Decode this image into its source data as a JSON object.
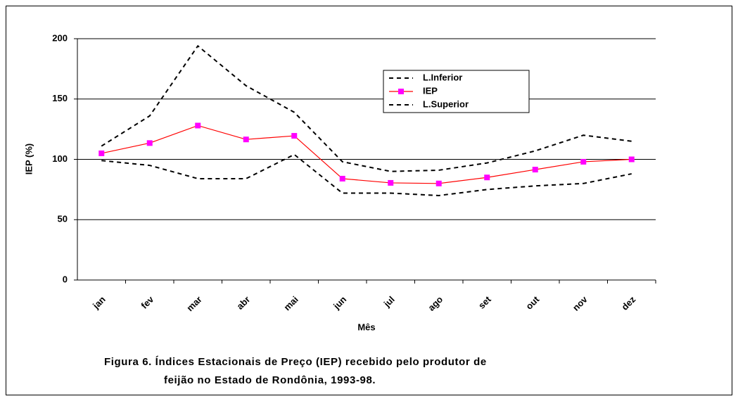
{
  "chart_data": {
    "type": "line",
    "title": [
      "Figura 6. Índices Estacionais de Preço (IEP) recebido pelo produtor de",
      "feijão no Estado de Rondônia, 1993-98."
    ],
    "x_label": "Mês",
    "y_label": "IEP (%)",
    "categories": [
      "jan",
      "fev",
      "mar",
      "abr",
      "mai",
      "jun",
      "jul",
      "ago",
      "set",
      "out",
      "nov",
      "dez"
    ],
    "series": [
      {
        "name": "L.Inferior",
        "color": "#000000",
        "dashed": true,
        "marker": false,
        "values": [
          99,
          95,
          84,
          84,
          104,
          72,
          72,
          70,
          75,
          78,
          80,
          88
        ]
      },
      {
        "name": "IEP",
        "color": "#ff0000",
        "marker_color": "#ff00ff",
        "dashed": false,
        "marker": true,
        "values": [
          105,
          113.5,
          128,
          116.5,
          119.5,
          84,
          80.5,
          80,
          85,
          91.5,
          98,
          100
        ]
      },
      {
        "name": "L.Superior",
        "color": "#000000",
        "dashed": true,
        "marker": false,
        "values": [
          111,
          136,
          194,
          161,
          139,
          98,
          90,
          91,
          97,
          107,
          120,
          115
        ]
      }
    ],
    "ylim": [
      0,
      200
    ],
    "yticks": [
      0,
      50,
      100,
      150,
      200
    ],
    "grid": true
  }
}
